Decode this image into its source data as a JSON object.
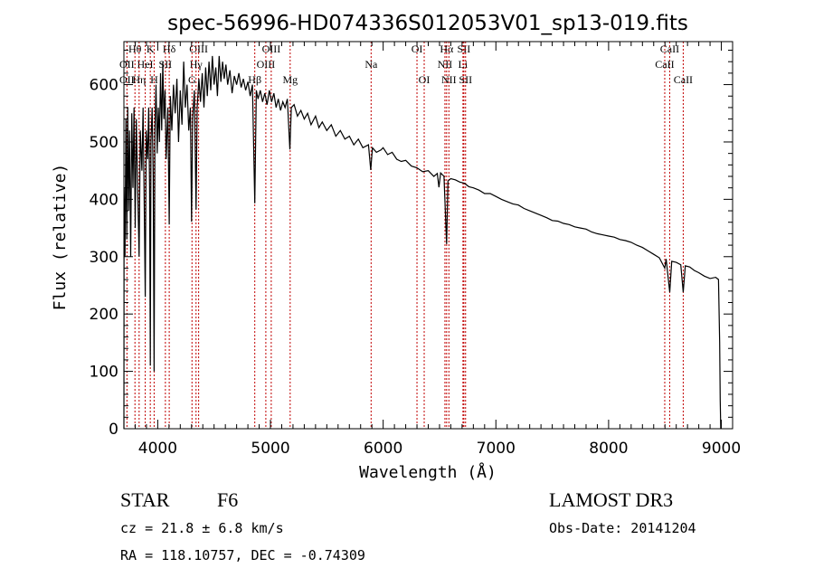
{
  "chart_data": {
    "type": "line",
    "title": "spec-56996-HD074336S012053V01_sp13-019.fits",
    "xlabel": "Wavelength (Å)",
    "ylabel": "Flux (relative)",
    "xlim": [
      3700,
      9100
    ],
    "ylim": [
      0,
      675
    ],
    "xticks": [
      4000,
      5000,
      6000,
      7000,
      8000,
      9000
    ],
    "yticks": [
      0,
      100,
      200,
      300,
      400,
      500,
      600
    ],
    "grid": false,
    "series": [
      {
        "name": "spectrum",
        "color": "#000000",
        "points": [
          [
            3700,
            0
          ],
          [
            3702,
            420
          ],
          [
            3710,
            300
          ],
          [
            3718,
            540
          ],
          [
            3726,
            330
          ],
          [
            3734,
            560
          ],
          [
            3742,
            380
          ],
          [
            3750,
            520
          ],
          [
            3760,
            300
          ],
          [
            3770,
            550
          ],
          [
            3780,
            420
          ],
          [
            3790,
            560
          ],
          [
            3800,
            350
          ],
          [
            3810,
            540
          ],
          [
            3820,
            440
          ],
          [
            3835,
            300
          ],
          [
            3845,
            520
          ],
          [
            3860,
            450
          ],
          [
            3870,
            560
          ],
          [
            3880,
            400
          ],
          [
            3889,
            230
          ],
          [
            3898,
            520
          ],
          [
            3910,
            470
          ],
          [
            3920,
            560
          ],
          [
            3928,
            420
          ],
          [
            3934,
            110
          ],
          [
            3940,
            500
          ],
          [
            3950,
            560
          ],
          [
            3960,
            440
          ],
          [
            3968,
            100
          ],
          [
            3975,
            520
          ],
          [
            3985,
            600
          ],
          [
            3995,
            480
          ],
          [
            4005,
            560
          ],
          [
            4015,
            500
          ],
          [
            4025,
            620
          ],
          [
            4035,
            520
          ],
          [
            4045,
            640
          ],
          [
            4055,
            540
          ],
          [
            4065,
            590
          ],
          [
            4075,
            470
          ],
          [
            4090,
            560
          ],
          [
            4102,
            356
          ],
          [
            4112,
            580
          ],
          [
            4125,
            520
          ],
          [
            4140,
            600
          ],
          [
            4155,
            550
          ],
          [
            4170,
            610
          ],
          [
            4185,
            500
          ],
          [
            4200,
            590
          ],
          [
            4215,
            530
          ],
          [
            4230,
            640
          ],
          [
            4245,
            560
          ],
          [
            4260,
            600
          ],
          [
            4275,
            520
          ],
          [
            4290,
            560
          ],
          [
            4300,
            361
          ],
          [
            4310,
            540
          ],
          [
            4325,
            590
          ],
          [
            4340,
            382
          ],
          [
            4350,
            560
          ],
          [
            4365,
            610
          ],
          [
            4380,
            570
          ],
          [
            4395,
            620
          ],
          [
            4410,
            560
          ],
          [
            4425,
            630
          ],
          [
            4440,
            580
          ],
          [
            4455,
            640
          ],
          [
            4470,
            590
          ],
          [
            4485,
            650
          ],
          [
            4500,
            600
          ],
          [
            4515,
            630
          ],
          [
            4530,
            580
          ],
          [
            4545,
            650
          ],
          [
            4560,
            605
          ],
          [
            4575,
            640
          ],
          [
            4590,
            610
          ],
          [
            4605,
            635
          ],
          [
            4620,
            600
          ],
          [
            4640,
            625
          ],
          [
            4660,
            585
          ],
          [
            4680,
            615
          ],
          [
            4700,
            600
          ],
          [
            4720,
            620
          ],
          [
            4740,
            595
          ],
          [
            4760,
            610
          ],
          [
            4780,
            590
          ],
          [
            4800,
            605
          ],
          [
            4820,
            580
          ],
          [
            4840,
            600
          ],
          [
            4861,
            393
          ],
          [
            4875,
            590
          ],
          [
            4890,
            575
          ],
          [
            4910,
            590
          ],
          [
            4930,
            570
          ],
          [
            4950,
            585
          ],
          [
            4970,
            565
          ],
          [
            4990,
            590
          ],
          [
            5010,
            570
          ],
          [
            5030,
            585
          ],
          [
            5050,
            560
          ],
          [
            5070,
            575
          ],
          [
            5090,
            555
          ],
          [
            5110,
            570
          ],
          [
            5130,
            560
          ],
          [
            5150,
            575
          ],
          [
            5172,
            487
          ],
          [
            5185,
            560
          ],
          [
            5210,
            565
          ],
          [
            5240,
            545
          ],
          [
            5270,
            555
          ],
          [
            5300,
            540
          ],
          [
            5330,
            550
          ],
          [
            5360,
            530
          ],
          [
            5400,
            545
          ],
          [
            5430,
            525
          ],
          [
            5460,
            535
          ],
          [
            5500,
            520
          ],
          [
            5540,
            530
          ],
          [
            5580,
            510
          ],
          [
            5620,
            520
          ],
          [
            5660,
            505
          ],
          [
            5700,
            510
          ],
          [
            5740,
            495
          ],
          [
            5780,
            505
          ],
          [
            5820,
            490
          ],
          [
            5870,
            495
          ],
          [
            5890,
            451
          ],
          [
            5905,
            490
          ],
          [
            5940,
            482
          ],
          [
            5980,
            486
          ],
          [
            6000,
            490
          ],
          [
            6040,
            478
          ],
          [
            6080,
            482
          ],
          [
            6120,
            470
          ],
          [
            6160,
            466
          ],
          [
            6200,
            468
          ],
          [
            6250,
            458
          ],
          [
            6300,
            455
          ],
          [
            6350,
            448
          ],
          [
            6400,
            450
          ],
          [
            6450,
            440
          ],
          [
            6480,
            445
          ],
          [
            6495,
            421
          ],
          [
            6510,
            446
          ],
          [
            6540,
            440
          ],
          [
            6563,
            322
          ],
          [
            6575,
            432
          ],
          [
            6600,
            436
          ],
          [
            6640,
            434
          ],
          [
            6680,
            430
          ],
          [
            6720,
            428
          ],
          [
            6760,
            422
          ],
          [
            6800,
            420
          ],
          [
            6850,
            416
          ],
          [
            6900,
            410
          ],
          [
            6950,
            410
          ],
          [
            7000,
            405
          ],
          [
            7050,
            400
          ],
          [
            7100,
            396
          ],
          [
            7150,
            392
          ],
          [
            7200,
            390
          ],
          [
            7250,
            384
          ],
          [
            7300,
            380
          ],
          [
            7350,
            376
          ],
          [
            7400,
            372
          ],
          [
            7450,
            368
          ],
          [
            7500,
            363
          ],
          [
            7550,
            362
          ],
          [
            7600,
            358
          ],
          [
            7650,
            356
          ],
          [
            7700,
            352
          ],
          [
            7750,
            350
          ],
          [
            7800,
            348
          ],
          [
            7850,
            343
          ],
          [
            7900,
            340
          ],
          [
            7950,
            338
          ],
          [
            8000,
            336
          ],
          [
            8050,
            334
          ],
          [
            8100,
            330
          ],
          [
            8150,
            328
          ],
          [
            8200,
            325
          ],
          [
            8250,
            320
          ],
          [
            8300,
            316
          ],
          [
            8350,
            310
          ],
          [
            8400,
            304
          ],
          [
            8450,
            298
          ],
          [
            8498,
            280
          ],
          [
            8510,
            296
          ],
          [
            8542,
            238
          ],
          [
            8560,
            292
          ],
          [
            8600,
            290
          ],
          [
            8640,
            286
          ],
          [
            8662,
            238
          ],
          [
            8680,
            284
          ],
          [
            8720,
            282
          ],
          [
            8760,
            276
          ],
          [
            8800,
            272
          ],
          [
            8850,
            266
          ],
          [
            8900,
            262
          ],
          [
            8950,
            264
          ],
          [
            8975,
            260
          ],
          [
            8985,
            150
          ],
          [
            8990,
            50
          ],
          [
            8995,
            0
          ]
        ]
      }
    ],
    "line_markers": [
      {
        "label": "Hθ",
        "wl": 3798,
        "row": 0
      },
      {
        "label": "K",
        "wl": 3934,
        "row": 0
      },
      {
        "label": "Hδ",
        "wl": 4102,
        "row": 0
      },
      {
        "label": "OIII",
        "wl": 4363,
        "row": 0
      },
      {
        "label": "OIII",
        "wl": 5007,
        "row": 0
      },
      {
        "label": "OI",
        "wl": 6300,
        "row": 0
      },
      {
        "label": "Hα",
        "wl": 6563,
        "row": 0
      },
      {
        "label": "SII",
        "wl": 6716,
        "row": 0
      },
      {
        "label": "CaII",
        "wl": 8542,
        "row": 0
      },
      {
        "label": "OII",
        "wl": 3727,
        "row": 1
      },
      {
        "label": "HeI",
        "wl": 3889,
        "row": 1
      },
      {
        "label": "SII",
        "wl": 4068,
        "row": 1
      },
      {
        "label": "Hγ",
        "wl": 4340,
        "row": 1
      },
      {
        "label": "OIII",
        "wl": 4959,
        "row": 1
      },
      {
        "label": "Na",
        "wl": 5893,
        "row": 1
      },
      {
        "label": "NII",
        "wl": 6548,
        "row": 1
      },
      {
        "label": "Li",
        "wl": 6708,
        "row": 1
      },
      {
        "label": "CaII",
        "wl": 8498,
        "row": 1
      },
      {
        "label": "OII",
        "wl": 3727,
        "row": 2
      },
      {
        "label": "Hη",
        "wl": 3835,
        "row": 2
      },
      {
        "label": "H",
        "wl": 3968,
        "row": 2
      },
      {
        "label": "G",
        "wl": 4304,
        "row": 2
      },
      {
        "label": "Hβ",
        "wl": 4861,
        "row": 2
      },
      {
        "label": "Mg",
        "wl": 5175,
        "row": 2
      },
      {
        "label": "OI",
        "wl": 6364,
        "row": 2
      },
      {
        "label": "NII",
        "wl": 6583,
        "row": 2
      },
      {
        "label": "SII",
        "wl": 6731,
        "row": 2
      },
      {
        "label": "CaII",
        "wl": 8662,
        "row": 2
      }
    ],
    "marker_color": "#c00000"
  },
  "info": {
    "object_class": "STAR",
    "subclass": "F6",
    "survey": "LAMOST DR3",
    "cz": "cz = 21.8 ± 6.8 km/s",
    "obs_date": "Obs-Date: 20141204",
    "coords": "RA = 118.10757, DEC =  -0.74309"
  }
}
